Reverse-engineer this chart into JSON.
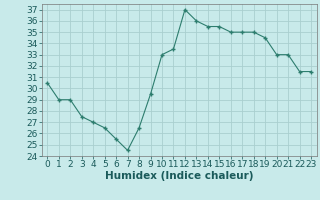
{
  "x": [
    0,
    1,
    2,
    3,
    4,
    5,
    6,
    7,
    8,
    9,
    10,
    11,
    12,
    13,
    14,
    15,
    16,
    17,
    18,
    19,
    20,
    21,
    22,
    23
  ],
  "y": [
    30.5,
    29,
    29,
    27.5,
    27,
    26.5,
    25.5,
    24.5,
    26.5,
    29.5,
    33,
    33.5,
    37,
    36,
    35.5,
    35.5,
    35,
    35,
    35,
    34.5,
    33,
    33,
    31.5,
    31.5
  ],
  "line_color": "#2d7d6e",
  "marker": "+",
  "marker_size": 3.5,
  "marker_lw": 1.0,
  "bg_color": "#c8eaea",
  "grid_color": "#aacfcf",
  "xlabel": "Humidex (Indice chaleur)",
  "xlim": [
    -0.5,
    23.5
  ],
  "ylim": [
    24,
    37.5
  ],
  "yticks": [
    24,
    25,
    26,
    27,
    28,
    29,
    30,
    31,
    32,
    33,
    34,
    35,
    36,
    37
  ],
  "xticks": [
    0,
    1,
    2,
    3,
    4,
    5,
    6,
    7,
    8,
    9,
    10,
    11,
    12,
    13,
    14,
    15,
    16,
    17,
    18,
    19,
    20,
    21,
    22,
    23
  ],
  "xlabel_fontsize": 7.5,
  "tick_fontsize": 6.5,
  "line_width": 0.8
}
